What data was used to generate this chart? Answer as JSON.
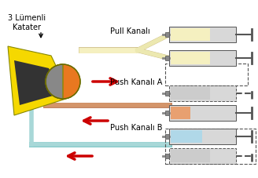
{
  "title": "",
  "bg_color": "#ffffff",
  "label_3lumen": "3 Lümenli\nKatater",
  "label_pull": "Pull Kanalı",
  "label_pushA": "Push Kanalı A",
  "label_pushB": "Push Kanalı B",
  "arrow_color": "#cc0000",
  "catheter_yellow": "#f5d800",
  "catheter_dark": "#444444",
  "catheter_orange": "#e87820",
  "pull_tube_color": "#f5f0c0",
  "push_a_tube_color": "#d4956a",
  "push_b_tube_color": "#a8d8d8",
  "syringe_gray": "#c0c0c0",
  "syringe_body": "#e8e8e8",
  "font_size_label": 7,
  "font_size_channel": 7
}
